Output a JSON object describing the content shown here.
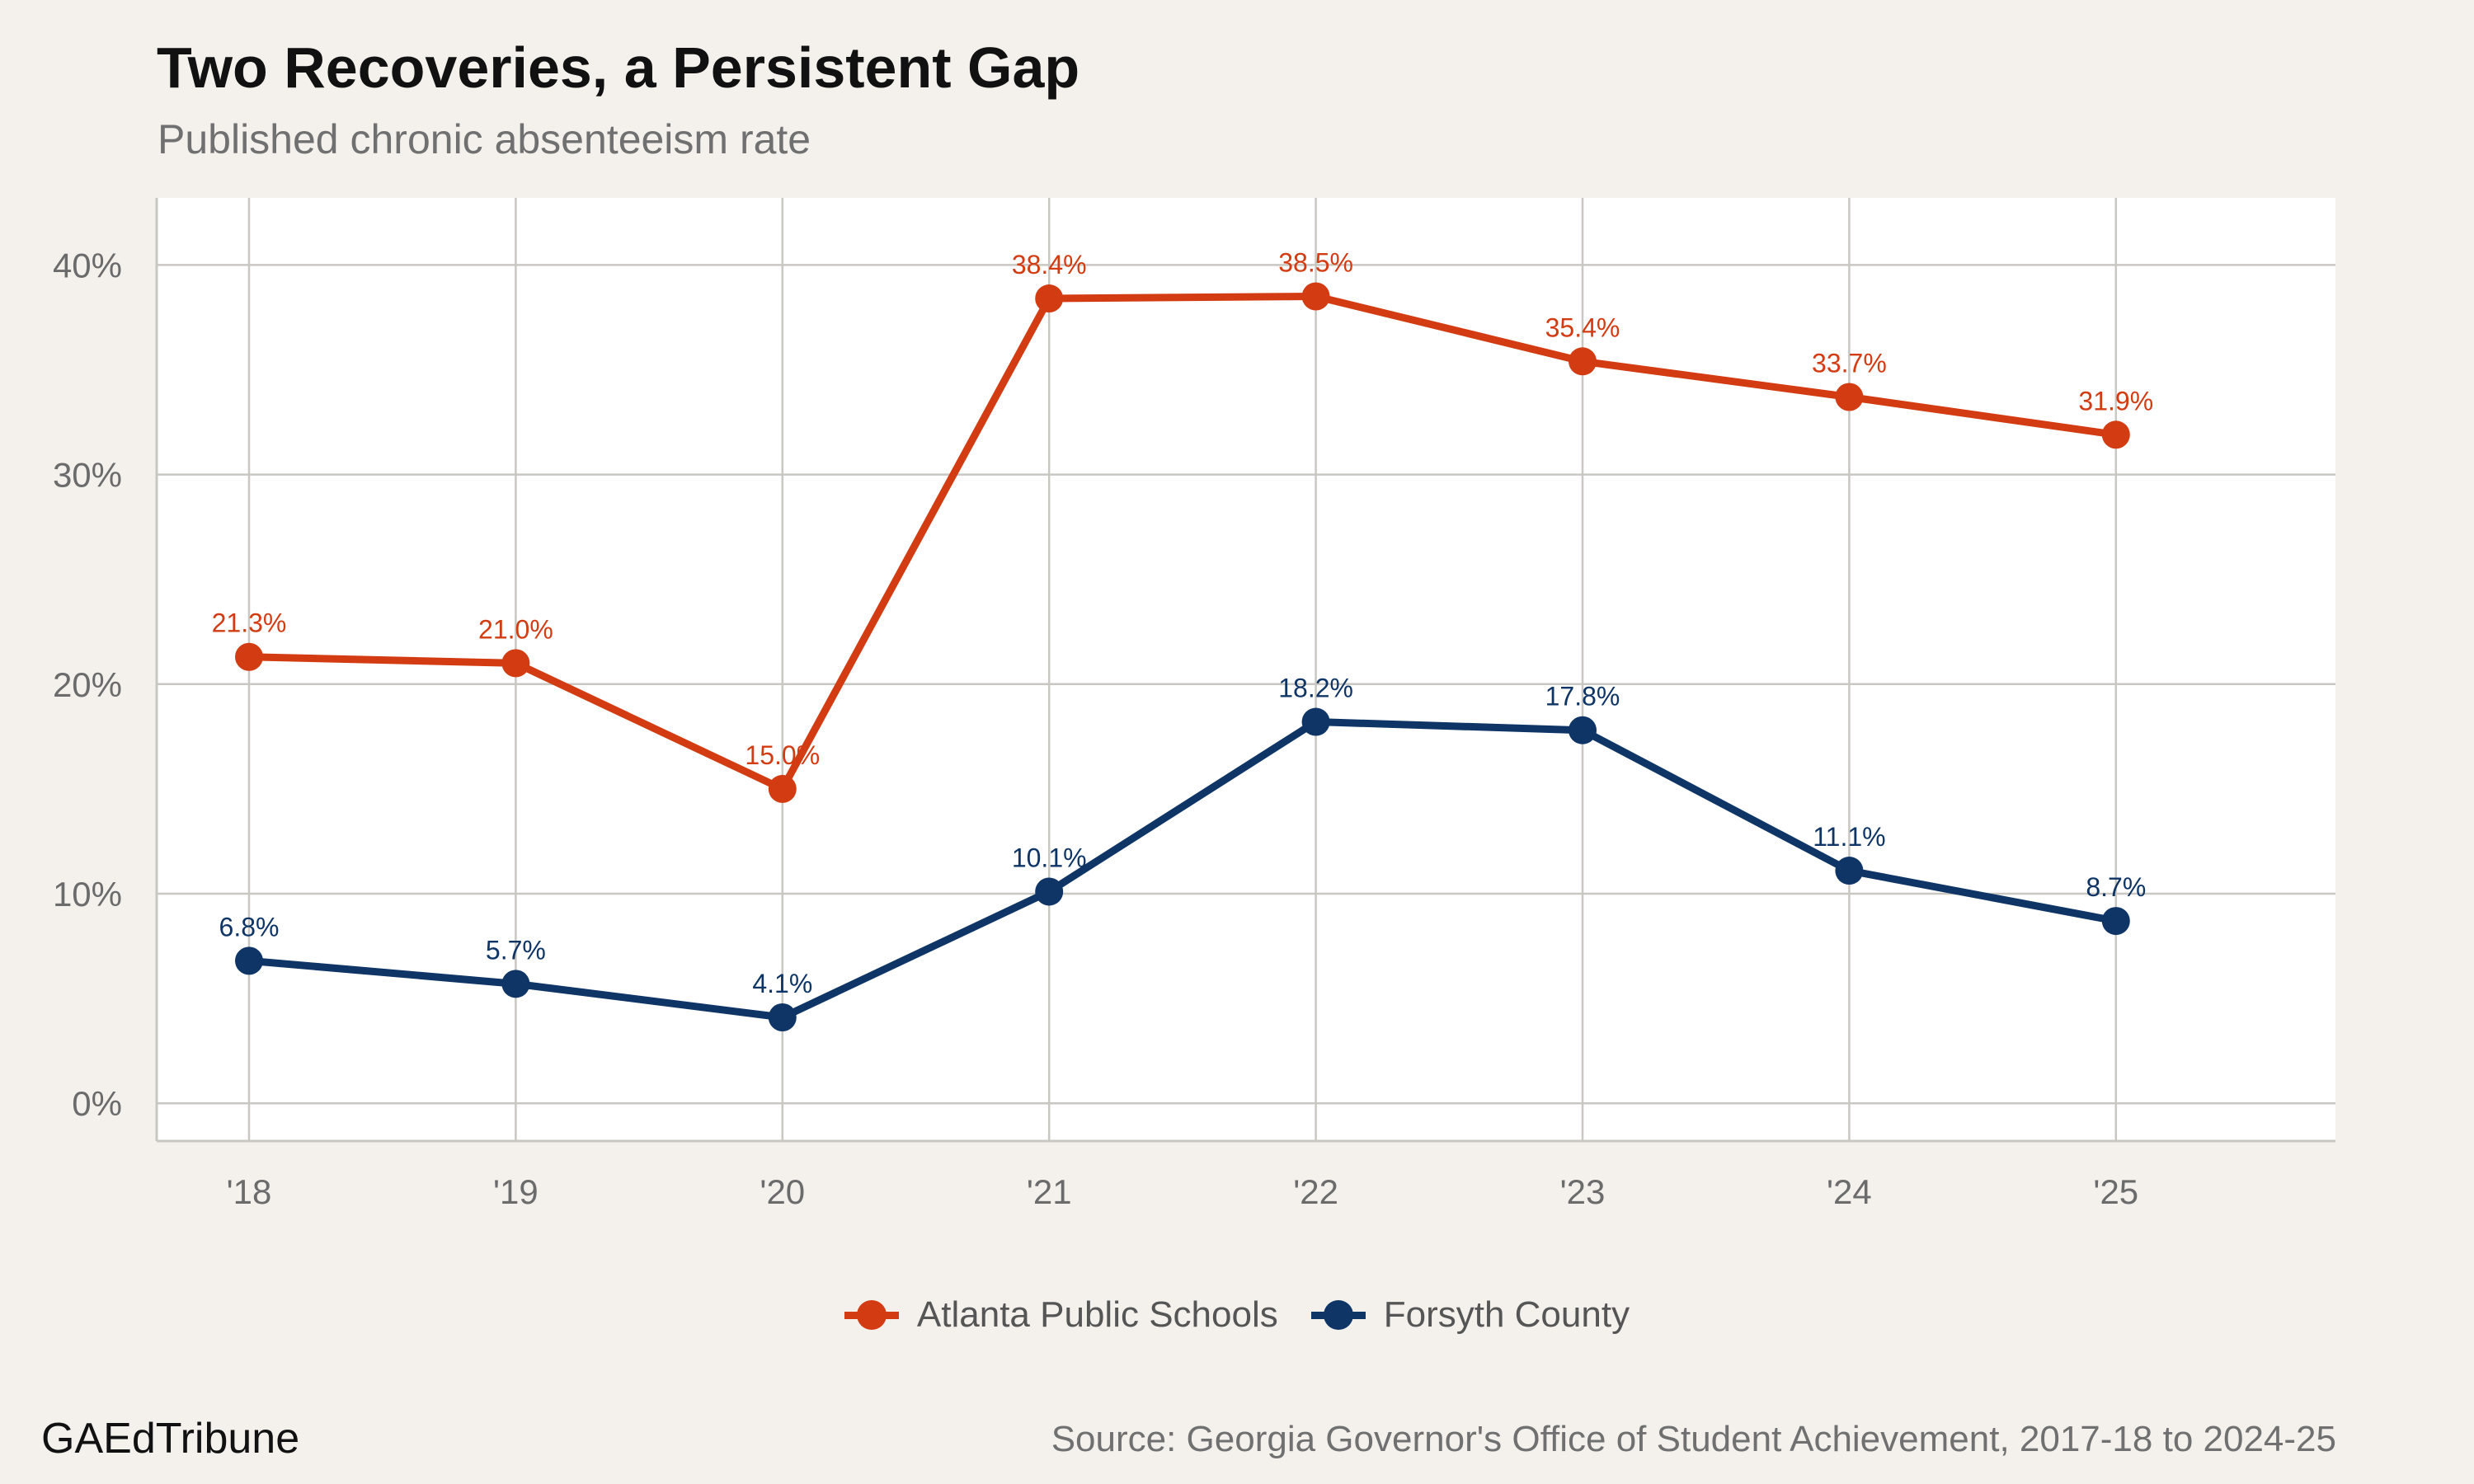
{
  "colors": {
    "background": "#f4f1ec",
    "panel": "#ffffff",
    "grid": "#c9c7c2",
    "axis_text": "#6b6b6b",
    "atlanta": "#d33c12",
    "forsyth": "#0e3566"
  },
  "header": {
    "title": "Two Recoveries, a Persistent Gap",
    "subtitle": "Published chronic absenteeism rate"
  },
  "footer": {
    "brand": "GAEdTribune",
    "source": "Source: Georgia Governor's Office of Student Achievement, 2017-18 to 2024-25"
  },
  "chart_data": {
    "type": "line",
    "title": "Two Recoveries, a Persistent Gap",
    "subtitle": "Published chronic absenteeism rate",
    "x": [
      "'18",
      "'19",
      "'20",
      "'21",
      "'22",
      "'23",
      "'24",
      "'25"
    ],
    "y_ticks": [
      "0%",
      "10%",
      "20%",
      "30%",
      "40%"
    ],
    "y_tick_values": [
      0,
      10,
      20,
      30,
      40
    ],
    "ylim": [
      -1.8,
      43.2
    ],
    "grid": true,
    "legend_position": "bottom",
    "series": [
      {
        "name": "Atlanta Public Schools",
        "color": "#d33c12",
        "values": [
          21.3,
          21.0,
          15.0,
          38.4,
          38.5,
          35.4,
          33.7,
          31.9
        ],
        "labels": [
          "21.3%",
          "21.0%",
          "15.0%",
          "38.4%",
          "38.5%",
          "35.4%",
          "33.7%",
          "31.9%"
        ]
      },
      {
        "name": "Forsyth County",
        "color": "#0e3566",
        "values": [
          6.8,
          5.7,
          4.1,
          10.1,
          18.2,
          17.8,
          11.1,
          8.7
        ],
        "labels": [
          "6.8%",
          "5.7%",
          "4.1%",
          "10.1%",
          "18.2%",
          "17.8%",
          "11.1%",
          "8.7%"
        ]
      }
    ]
  }
}
